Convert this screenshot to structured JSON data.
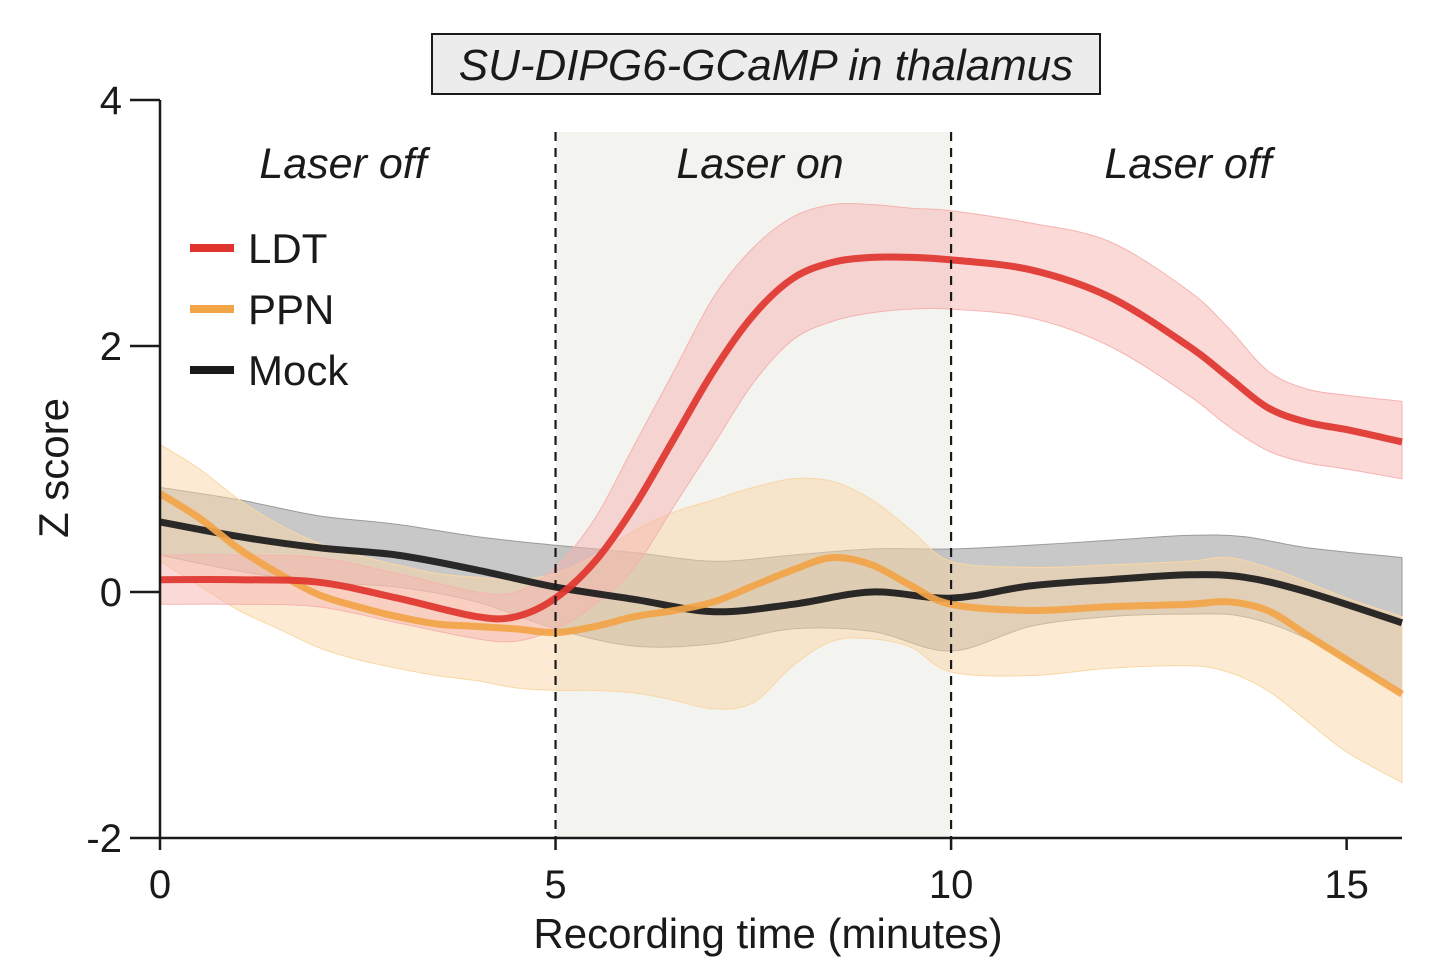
{
  "chart_data": {
    "type": "line",
    "title": "SU-DIPG6-GCaMP in thalamus",
    "xlabel": "Recording time (minutes)",
    "ylabel": "Z score",
    "xlim": [
      0,
      15.7
    ],
    "ylim": [
      -2,
      4
    ],
    "xticks": [
      0,
      5,
      10,
      15
    ],
    "yticks": [
      -2,
      0,
      2,
      4
    ],
    "x_tick_labels": [
      "0",
      "5",
      "10",
      "15"
    ],
    "y_tick_labels": [
      "-2",
      "0",
      "2",
      "4"
    ],
    "legend_position": "upper-left",
    "regions": [
      {
        "label": "Laser off",
        "x_start": 0,
        "x_end": 5,
        "shaded": false
      },
      {
        "label": "Laser on",
        "x_start": 5,
        "x_end": 10,
        "shaded": true
      },
      {
        "label": "Laser off",
        "x_start": 10,
        "x_end": 15.7,
        "shaded": false
      }
    ],
    "boundaries": [
      5,
      10
    ],
    "series": [
      {
        "name": "Mock",
        "color": "#1a1a1a",
        "band_color": "#9a9a9a",
        "x": [
          0,
          1,
          2,
          3,
          4,
          5,
          6,
          7,
          8,
          9,
          10,
          11,
          12,
          13,
          13.7,
          14.5,
          15.7
        ],
        "mean": [
          0.57,
          0.45,
          0.36,
          0.3,
          0.18,
          0.04,
          -0.06,
          -0.16,
          -0.1,
          0.0,
          -0.05,
          0.05,
          0.1,
          0.14,
          0.12,
          0.0,
          -0.25
        ],
        "upper": [
          0.85,
          0.75,
          0.62,
          0.55,
          0.45,
          0.38,
          0.32,
          0.25,
          0.3,
          0.35,
          0.35,
          0.38,
          0.42,
          0.46,
          0.45,
          0.36,
          0.28
        ],
        "lower": [
          0.3,
          0.17,
          0.08,
          0.04,
          -0.08,
          -0.3,
          -0.44,
          -0.42,
          -0.3,
          -0.32,
          -0.48,
          -0.28,
          -0.2,
          -0.18,
          -0.2,
          -0.38,
          -0.8
        ]
      },
      {
        "name": "PPN",
        "color": "#f2a446",
        "band_color": "#f9d7a6",
        "x": [
          0,
          0.5,
          1,
          1.5,
          2,
          2.5,
          3,
          3.5,
          4,
          4.5,
          5,
          5.5,
          6,
          6.5,
          7,
          7.5,
          8,
          8.5,
          9,
          9.5,
          10,
          11,
          12,
          13,
          13.5,
          14,
          14.5,
          15,
          15.7
        ],
        "mean": [
          0.8,
          0.6,
          0.35,
          0.15,
          -0.02,
          -0.12,
          -0.2,
          -0.26,
          -0.28,
          -0.3,
          -0.33,
          -0.28,
          -0.2,
          -0.15,
          -0.08,
          0.05,
          0.18,
          0.28,
          0.22,
          0.05,
          -0.1,
          -0.15,
          -0.12,
          -0.1,
          -0.08,
          -0.15,
          -0.35,
          -0.55,
          -0.83
        ],
        "upper": [
          1.2,
          1.0,
          0.75,
          0.55,
          0.4,
          0.3,
          0.22,
          0.15,
          0.12,
          0.1,
          0.15,
          0.3,
          0.5,
          0.65,
          0.75,
          0.85,
          0.92,
          0.9,
          0.75,
          0.5,
          0.25,
          0.2,
          0.22,
          0.25,
          0.28,
          0.2,
          0.08,
          -0.05,
          -0.2
        ],
        "lower": [
          0.25,
          0.05,
          -0.15,
          -0.3,
          -0.45,
          -0.55,
          -0.62,
          -0.68,
          -0.72,
          -0.78,
          -0.8,
          -0.8,
          -0.82,
          -0.88,
          -0.95,
          -0.9,
          -0.6,
          -0.4,
          -0.38,
          -0.45,
          -0.65,
          -0.68,
          -0.62,
          -0.6,
          -0.65,
          -0.8,
          -1.05,
          -1.3,
          -1.55
        ]
      },
      {
        "name": "LDT",
        "color": "#e0352f",
        "band_color": "#f6b3b0",
        "x": [
          0,
          1,
          2,
          3,
          4,
          4.5,
          5,
          5.5,
          6,
          6.5,
          7,
          7.5,
          8,
          8.5,
          9,
          9.5,
          10,
          11,
          12,
          13,
          13.5,
          14,
          14.5,
          15,
          15.7
        ],
        "mean": [
          0.1,
          0.1,
          0.08,
          -0.05,
          -0.2,
          -0.2,
          -0.05,
          0.25,
          0.7,
          1.25,
          1.8,
          2.25,
          2.55,
          2.68,
          2.72,
          2.72,
          2.7,
          2.62,
          2.4,
          2.0,
          1.75,
          1.5,
          1.38,
          1.32,
          1.22
        ],
        "upper": [
          0.3,
          0.3,
          0.28,
          0.15,
          0.0,
          0.0,
          0.2,
          0.6,
          1.2,
          1.8,
          2.4,
          2.8,
          3.05,
          3.15,
          3.15,
          3.12,
          3.1,
          3.0,
          2.85,
          2.45,
          2.15,
          1.8,
          1.65,
          1.6,
          1.55
        ],
        "lower": [
          -0.1,
          -0.1,
          -0.12,
          -0.25,
          -0.38,
          -0.4,
          -0.3,
          -0.1,
          0.2,
          0.7,
          1.2,
          1.7,
          2.05,
          2.2,
          2.27,
          2.3,
          2.3,
          2.23,
          2.0,
          1.6,
          1.35,
          1.15,
          1.05,
          1.0,
          0.92
        ]
      }
    ],
    "legend_order": [
      "LDT",
      "PPN",
      "Mock"
    ]
  }
}
